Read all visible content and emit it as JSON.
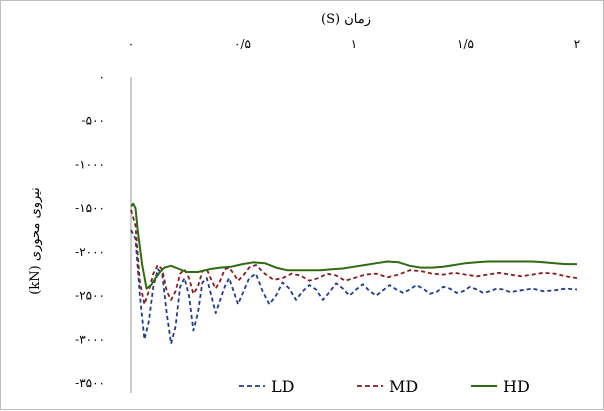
{
  "chart_data": {
    "type": "line",
    "title": "",
    "xlabel": "زمان (S)",
    "ylabel": "نیروی محوری (kN)",
    "xlim": [
      0,
      2
    ],
    "ylim": [
      -3500,
      0
    ],
    "x_ticks": [
      {
        "value": 0,
        "label": "۰"
      },
      {
        "value": 0.5,
        "label": "۰/۵"
      },
      {
        "value": 1,
        "label": "۱"
      },
      {
        "value": 1.5,
        "label": "۱/۵"
      },
      {
        "value": 2,
        "label": "۲"
      }
    ],
    "y_ticks": [
      {
        "value": 0,
        "label": "۰"
      },
      {
        "value": -500,
        "label": "-۵۰۰"
      },
      {
        "value": -1000,
        "label": "-۱۰۰۰"
      },
      {
        "value": -1500,
        "label": "-۱۵۰۰"
      },
      {
        "value": -2000,
        "label": "-۲۰۰۰"
      },
      {
        "value": -2500,
        "label": "-۲۵۰۰"
      },
      {
        "value": -3000,
        "label": "-۳۰۰۰"
      },
      {
        "value": -3500,
        "label": "-۳۵۰۰"
      }
    ],
    "x_axis_position": "top",
    "grid": false,
    "legend_position": "bottom",
    "series": [
      {
        "name": "LD",
        "color": "#1f3a93",
        "dash": "dashed",
        "x": [
          0,
          0.02,
          0.04,
          0.06,
          0.08,
          0.1,
          0.12,
          0.14,
          0.16,
          0.18,
          0.2,
          0.22,
          0.24,
          0.26,
          0.28,
          0.3,
          0.32,
          0.34,
          0.36,
          0.38,
          0.4,
          0.42,
          0.44,
          0.46,
          0.48,
          0.5,
          0.53,
          0.56,
          0.59,
          0.62,
          0.65,
          0.68,
          0.71,
          0.74,
          0.77,
          0.8,
          0.83,
          0.86,
          0.89,
          0.92,
          0.95,
          0.98,
          1.01,
          1.04,
          1.07,
          1.1,
          1.13,
          1.16,
          1.19,
          1.22,
          1.25,
          1.28,
          1.31,
          1.34,
          1.37,
          1.4,
          1.43,
          1.46,
          1.49,
          1.52,
          1.55,
          1.58,
          1.61,
          1.64,
          1.67,
          1.7,
          1.75,
          1.8,
          1.85,
          1.9,
          1.95,
          2.0
        ],
        "y": [
          -1750,
          -1850,
          -2500,
          -3000,
          -2800,
          -2400,
          -2200,
          -2250,
          -2700,
          -3050,
          -2850,
          -2400,
          -2300,
          -2500,
          -2900,
          -2700,
          -2350,
          -2300,
          -2500,
          -2700,
          -2550,
          -2400,
          -2300,
          -2450,
          -2600,
          -2480,
          -2300,
          -2250,
          -2450,
          -2600,
          -2500,
          -2350,
          -2420,
          -2550,
          -2450,
          -2380,
          -2430,
          -2550,
          -2460,
          -2360,
          -2420,
          -2500,
          -2430,
          -2370,
          -2450,
          -2500,
          -2440,
          -2380,
          -2430,
          -2470,
          -2430,
          -2380,
          -2420,
          -2480,
          -2460,
          -2400,
          -2420,
          -2470,
          -2450,
          -2400,
          -2430,
          -2470,
          -2450,
          -2420,
          -2430,
          -2460,
          -2440,
          -2420,
          -2450,
          -2440,
          -2420,
          -2430
        ]
      },
      {
        "name": "MD",
        "color": "#8b1a1a",
        "dash": "dashed",
        "x": [
          0,
          0.02,
          0.04,
          0.06,
          0.08,
          0.1,
          0.12,
          0.14,
          0.16,
          0.18,
          0.2,
          0.22,
          0.24,
          0.26,
          0.28,
          0.3,
          0.32,
          0.34,
          0.36,
          0.38,
          0.4,
          0.42,
          0.44,
          0.46,
          0.48,
          0.5,
          0.53,
          0.56,
          0.6,
          0.64,
          0.68,
          0.72,
          0.76,
          0.8,
          0.84,
          0.88,
          0.92,
          0.96,
          1.0,
          1.05,
          1.1,
          1.15,
          1.2,
          1.25,
          1.3,
          1.35,
          1.4,
          1.45,
          1.5,
          1.55,
          1.6,
          1.65,
          1.7,
          1.75,
          1.8,
          1.85,
          1.9,
          1.95,
          2.0
        ],
        "y": [
          -1520,
          -1700,
          -2350,
          -2600,
          -2450,
          -2250,
          -2150,
          -2200,
          -2450,
          -2550,
          -2450,
          -2250,
          -2200,
          -2300,
          -2480,
          -2400,
          -2220,
          -2200,
          -2320,
          -2420,
          -2330,
          -2200,
          -2180,
          -2250,
          -2330,
          -2280,
          -2180,
          -2150,
          -2250,
          -2320,
          -2300,
          -2250,
          -2270,
          -2330,
          -2300,
          -2250,
          -2270,
          -2330,
          -2300,
          -2260,
          -2250,
          -2290,
          -2260,
          -2210,
          -2220,
          -2250,
          -2260,
          -2240,
          -2260,
          -2280,
          -2260,
          -2240,
          -2260,
          -2280,
          -2260,
          -2240,
          -2250,
          -2280,
          -2300
        ]
      },
      {
        "name": "HD",
        "color": "#2e6b12",
        "dash": "solid",
        "x": [
          0,
          0.01,
          0.02,
          0.03,
          0.05,
          0.07,
          0.09,
          0.11,
          0.13,
          0.15,
          0.18,
          0.21,
          0.25,
          0.3,
          0.35,
          0.4,
          0.45,
          0.5,
          0.55,
          0.6,
          0.65,
          0.7,
          0.75,
          0.8,
          0.85,
          0.9,
          0.95,
          1.0,
          1.05,
          1.1,
          1.15,
          1.2,
          1.25,
          1.3,
          1.35,
          1.4,
          1.45,
          1.5,
          1.55,
          1.6,
          1.65,
          1.7,
          1.75,
          1.8,
          1.85,
          1.9,
          1.95,
          2.0
        ],
        "y": [
          -1480,
          -1450,
          -1500,
          -1750,
          -2150,
          -2420,
          -2380,
          -2300,
          -2230,
          -2180,
          -2160,
          -2190,
          -2230,
          -2230,
          -2200,
          -2180,
          -2170,
          -2140,
          -2120,
          -2130,
          -2180,
          -2210,
          -2210,
          -2210,
          -2210,
          -2200,
          -2190,
          -2170,
          -2150,
          -2130,
          -2110,
          -2120,
          -2160,
          -2180,
          -2180,
          -2170,
          -2150,
          -2130,
          -2120,
          -2110,
          -2110,
          -2110,
          -2110,
          -2110,
          -2120,
          -2130,
          -2140,
          -2140
        ]
      }
    ]
  }
}
